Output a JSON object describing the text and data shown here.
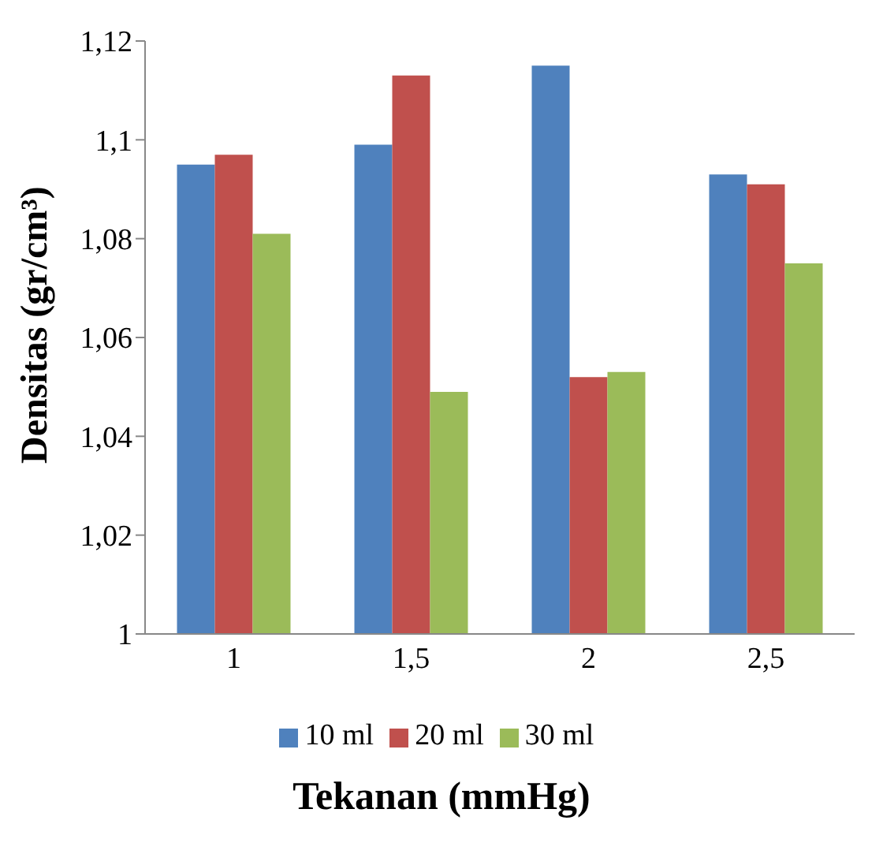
{
  "chart_data": {
    "type": "bar",
    "xlabel": "Tekanan (mmHg)",
    "ylabel": "Densitas (gr/cm³)",
    "categories": [
      "1",
      "1,5",
      "2",
      "2,5"
    ],
    "series": [
      {
        "name": "10 ml",
        "color": "#4f81bd",
        "values": [
          1.095,
          1.099,
          1.115,
          1.093
        ]
      },
      {
        "name": "20 ml",
        "color": "#c0504d",
        "values": [
          1.097,
          1.113,
          1.052,
          1.091
        ]
      },
      {
        "name": "30 ml",
        "color": "#9bbb59",
        "values": [
          1.081,
          1.049,
          1.053,
          1.075
        ]
      }
    ],
    "ylim": [
      1,
      1.12
    ],
    "yticks": [
      {
        "value": 1,
        "label": "1"
      },
      {
        "value": 1.02,
        "label": "1,02"
      },
      {
        "value": 1.04,
        "label": "1,04"
      },
      {
        "value": 1.06,
        "label": "1,06"
      },
      {
        "value": 1.08,
        "label": "1,08"
      },
      {
        "value": 1.1,
        "label": "1,1"
      },
      {
        "value": 1.12,
        "label": "1,12"
      }
    ],
    "grid": false,
    "legend": "bottom"
  }
}
